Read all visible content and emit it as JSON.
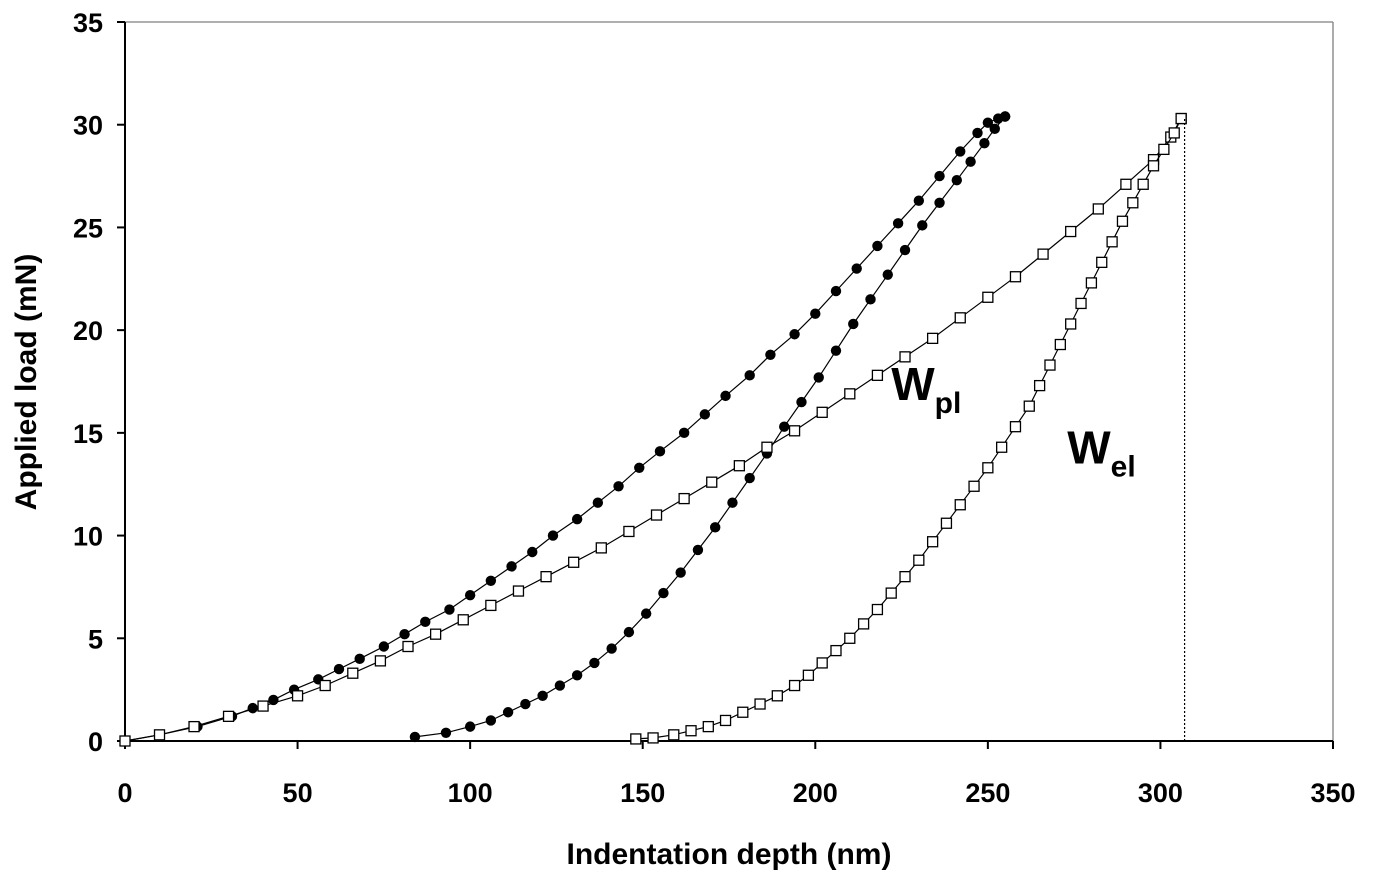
{
  "chart_data": {
    "type": "scatter",
    "title": "",
    "xlabel": "Indentation depth (nm)",
    "ylabel": "Applied load (mN)",
    "xlim": [
      0,
      350
    ],
    "ylim": [
      0,
      35
    ],
    "xticks": [
      0,
      50,
      100,
      150,
      200,
      250,
      300,
      350
    ],
    "yticks": [
      0,
      5,
      10,
      15,
      20,
      25,
      30,
      35
    ],
    "grid": false,
    "legend": "none",
    "series": [
      {
        "marker": "filled-circle",
        "color": "#000000",
        "loading": {
          "x": [
            0,
            10,
            21,
            31,
            37,
            43,
            49,
            56,
            62,
            68,
            75,
            81,
            87,
            94,
            100,
            106,
            112,
            118,
            124,
            131,
            137,
            143,
            149,
            155,
            162,
            168,
            174,
            181,
            187,
            194,
            200,
            206,
            212,
            218,
            224,
            230,
            236,
            242,
            247,
            250,
            253,
            255
          ],
          "y": [
            0,
            0.3,
            0.7,
            1.2,
            1.6,
            2.0,
            2.5,
            3.0,
            3.5,
            4.0,
            4.6,
            5.2,
            5.8,
            6.4,
            7.1,
            7.8,
            8.5,
            9.2,
            10.0,
            10.8,
            11.6,
            12.4,
            13.3,
            14.1,
            15.0,
            15.9,
            16.8,
            17.8,
            18.8,
            19.8,
            20.8,
            21.9,
            23.0,
            24.1,
            25.2,
            26.3,
            27.5,
            28.7,
            29.6,
            30.1,
            30.3,
            30.4
          ]
        },
        "unloading": {
          "x": [
            255,
            252,
            249,
            245,
            241,
            236,
            231,
            226,
            221,
            216,
            211,
            206,
            201,
            196,
            191,
            186,
            181,
            176,
            171,
            166,
            161,
            156,
            151,
            146,
            141,
            136,
            131,
            126,
            121,
            116,
            111,
            106,
            100,
            93,
            84
          ],
          "y": [
            30.4,
            29.8,
            29.1,
            28.2,
            27.3,
            26.2,
            25.1,
            23.9,
            22.7,
            21.5,
            20.3,
            19.0,
            17.7,
            16.5,
            15.3,
            14.0,
            12.8,
            11.6,
            10.4,
            9.3,
            8.2,
            7.2,
            6.2,
            5.3,
            4.5,
            3.8,
            3.2,
            2.7,
            2.2,
            1.8,
            1.4,
            1.0,
            0.7,
            0.4,
            0.2
          ]
        }
      },
      {
        "marker": "open-square",
        "color": "#000000",
        "loading": {
          "x": [
            0,
            10,
            20,
            30,
            40,
            50,
            58,
            66,
            74,
            82,
            90,
            98,
            106,
            114,
            122,
            130,
            138,
            146,
            154,
            162,
            170,
            178,
            186,
            194,
            202,
            210,
            218,
            226,
            234,
            242,
            250,
            258,
            266,
            274,
            282,
            290,
            298,
            303,
            306
          ],
          "y": [
            0,
            0.3,
            0.7,
            1.2,
            1.7,
            2.2,
            2.7,
            3.3,
            3.9,
            4.6,
            5.2,
            5.9,
            6.6,
            7.3,
            8.0,
            8.7,
            9.4,
            10.2,
            11.0,
            11.8,
            12.6,
            13.4,
            14.3,
            15.1,
            16.0,
            16.9,
            17.8,
            18.7,
            19.6,
            20.6,
            21.6,
            22.6,
            23.7,
            24.8,
            25.9,
            27.1,
            28.3,
            29.4,
            30.3
          ]
        },
        "unloading": {
          "x": [
            306,
            304,
            301,
            298,
            295,
            292,
            289,
            286,
            283,
            280,
            277,
            274,
            271,
            268,
            265,
            262,
            258,
            254,
            250,
            246,
            242,
            238,
            234,
            230,
            226,
            222,
            218,
            214,
            210,
            206,
            202,
            198,
            194,
            189,
            184,
            179,
            174,
            169,
            164,
            159,
            153,
            148
          ],
          "y": [
            30.3,
            29.6,
            28.8,
            28.0,
            27.1,
            26.2,
            25.3,
            24.3,
            23.3,
            22.3,
            21.3,
            20.3,
            19.3,
            18.3,
            17.3,
            16.3,
            15.3,
            14.3,
            13.3,
            12.4,
            11.5,
            10.6,
            9.7,
            8.8,
            8.0,
            7.2,
            6.4,
            5.7,
            5.0,
            4.4,
            3.8,
            3.2,
            2.7,
            2.2,
            1.8,
            1.4,
            1.0,
            0.7,
            0.5,
            0.3,
            0.15,
            0.1
          ]
        }
      }
    ],
    "reference_line": {
      "x": 307,
      "y0": 0,
      "y1": 30.3,
      "style": "dotted"
    },
    "annotations": [
      {
        "main": "W",
        "sub": "pl",
        "x": 222,
        "y": 16.6
      },
      {
        "main": "W",
        "sub": "el",
        "x": 273,
        "y": 13.5
      }
    ]
  }
}
